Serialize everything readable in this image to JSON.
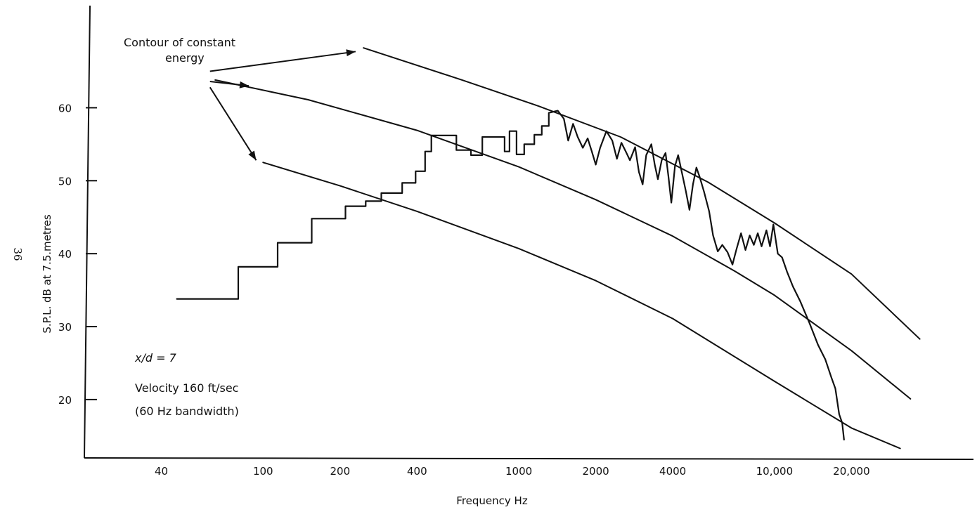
{
  "page_number": "36",
  "chart_data": {
    "type": "line",
    "title": "",
    "xlabel": "Frequency Hz",
    "ylabel": "S.P.L. dB at 7.5.metres",
    "x_scale": "log",
    "xlim": [
      20,
      60000
    ],
    "ylim": [
      12,
      74
    ],
    "grid": false,
    "x_ticks": [
      {
        "value": 40,
        "label": "40"
      },
      {
        "value": 100,
        "label": "100"
      },
      {
        "value": 200,
        "label": "200"
      },
      {
        "value": 400,
        "label": "400"
      },
      {
        "value": 1000,
        "label": "1000"
      },
      {
        "value": 2000,
        "label": "2000"
      },
      {
        "value": 4000,
        "label": "4000"
      },
      {
        "value": 10000,
        "label": "10,000"
      },
      {
        "value": 20000,
        "label": "20,000"
      }
    ],
    "y_ticks": [
      {
        "value": 20,
        "label": "20"
      },
      {
        "value": 30,
        "label": "30"
      },
      {
        "value": 40,
        "label": "40"
      },
      {
        "value": 50,
        "label": "50"
      },
      {
        "value": 60,
        "label": "60"
      }
    ],
    "annotations": [
      {
        "text": "Contour of constant",
        "role": "callout-line-1"
      },
      {
        "text": "energy",
        "role": "callout-line-2"
      },
      {
        "text": "x/d = 7",
        "role": "condition"
      },
      {
        "text": "Velocity 160 ft/sec",
        "role": "condition"
      },
      {
        "text": "(60 Hz bandwidth)",
        "role": "condition"
      }
    ],
    "series": [
      {
        "role": "measured-spectrum",
        "style": "step",
        "points": [
          [
            46,
            33.8
          ],
          [
            80,
            33.8
          ],
          [
            80,
            38.2
          ],
          [
            114,
            38.2
          ],
          [
            114,
            41.5
          ],
          [
            155,
            41.5
          ],
          [
            155,
            44.8
          ],
          [
            210,
            44.8
          ],
          [
            210,
            46.5
          ],
          [
            252,
            46.5
          ],
          [
            252,
            47.2
          ],
          [
            290,
            47.2
          ],
          [
            290,
            48.3
          ],
          [
            350,
            48.3
          ],
          [
            350,
            49.7
          ],
          [
            395,
            49.7
          ],
          [
            395,
            51.3
          ],
          [
            430,
            51.3
          ],
          [
            430,
            54.0
          ],
          [
            455,
            54.0
          ],
          [
            455,
            56.2
          ],
          [
            570,
            56.2
          ],
          [
            570,
            54.2
          ],
          [
            650,
            54.2
          ],
          [
            650,
            53.5
          ],
          [
            720,
            53.5
          ],
          [
            720,
            56.0
          ],
          [
            880,
            56.0
          ],
          [
            880,
            54.0
          ],
          [
            920,
            54.0
          ],
          [
            920,
            56.8
          ],
          [
            980,
            56.8
          ],
          [
            980,
            53.6
          ],
          [
            1050,
            53.6
          ],
          [
            1050,
            55.0
          ],
          [
            1150,
            55.0
          ],
          [
            1150,
            56.3
          ],
          [
            1230,
            56.3
          ],
          [
            1230,
            57.5
          ],
          [
            1310,
            57.5
          ],
          [
            1310,
            59.3
          ],
          [
            1420,
            59.6
          ],
          [
            1500,
            58.5
          ],
          [
            1560,
            55.5
          ],
          [
            1630,
            57.8
          ],
          [
            1700,
            56.0
          ],
          [
            1780,
            54.5
          ],
          [
            1860,
            55.8
          ],
          [
            1930,
            54.0
          ],
          [
            2000,
            52.2
          ],
          [
            2080,
            54.5
          ],
          [
            2200,
            56.8
          ],
          [
            2320,
            55.5
          ],
          [
            2420,
            53.0
          ],
          [
            2520,
            55.2
          ],
          [
            2620,
            54.0
          ],
          [
            2720,
            52.8
          ],
          [
            2850,
            54.6
          ],
          [
            2950,
            51.2
          ],
          [
            3050,
            49.5
          ],
          [
            3150,
            53.5
          ],
          [
            3300,
            55.0
          ],
          [
            3400,
            52.2
          ],
          [
            3500,
            50.2
          ],
          [
            3620,
            52.8
          ],
          [
            3750,
            53.8
          ],
          [
            3850,
            50.5
          ],
          [
            3950,
            47.0
          ],
          [
            4080,
            52.0
          ],
          [
            4200,
            53.5
          ],
          [
            4350,
            51.0
          ],
          [
            4500,
            48.6
          ],
          [
            4650,
            46.0
          ],
          [
            4800,
            49.5
          ],
          [
            4950,
            51.8
          ],
          [
            5100,
            50.5
          ],
          [
            5300,
            48.5
          ],
          [
            5550,
            45.8
          ],
          [
            5750,
            42.5
          ],
          [
            6000,
            40.3
          ],
          [
            6250,
            41.2
          ],
          [
            6550,
            40.2
          ],
          [
            6850,
            38.5
          ],
          [
            7100,
            40.6
          ],
          [
            7400,
            42.8
          ],
          [
            7700,
            40.5
          ],
          [
            8000,
            42.5
          ],
          [
            8300,
            41.2
          ],
          [
            8600,
            42.8
          ],
          [
            8900,
            41.0
          ],
          [
            9300,
            43.2
          ],
          [
            9600,
            41.0
          ],
          [
            9900,
            44.0
          ],
          [
            10300,
            40.0
          ],
          [
            10700,
            39.5
          ],
          [
            11200,
            37.5
          ],
          [
            11800,
            35.5
          ],
          [
            12600,
            33.5
          ],
          [
            13700,
            30.5
          ],
          [
            14800,
            27.5
          ],
          [
            15800,
            25.5
          ],
          [
            16700,
            23.0
          ],
          [
            17300,
            21.5
          ],
          [
            17900,
            18.0
          ],
          [
            18400,
            16.8
          ],
          [
            18700,
            14.5
          ]
        ]
      },
      {
        "role": "constant-energy-contour-upper",
        "style": "line",
        "points": [
          [
            247,
            68.2
          ],
          [
            600,
            63.8
          ],
          [
            1200,
            60.2
          ],
          [
            2500,
            56.0
          ],
          [
            5500,
            49.8
          ],
          [
            10000,
            44.2
          ],
          [
            20000,
            37.2
          ],
          [
            37000,
            28.3
          ]
        ]
      },
      {
        "role": "constant-energy-contour-middle",
        "style": "line",
        "points": [
          [
            65,
            63.8
          ],
          [
            150,
            61.1
          ],
          [
            400,
            56.9
          ],
          [
            1000,
            51.9
          ],
          [
            2000,
            47.4
          ],
          [
            4000,
            42.4
          ],
          [
            7000,
            37.6
          ],
          [
            10000,
            34.3
          ],
          [
            20000,
            26.7
          ],
          [
            34000,
            20.1
          ]
        ]
      },
      {
        "role": "constant-energy-contour-lower",
        "style": "line",
        "points": [
          [
            100,
            52.5
          ],
          [
            200,
            49.3
          ],
          [
            400,
            45.8
          ],
          [
            1000,
            40.7
          ],
          [
            2000,
            36.3
          ],
          [
            4000,
            31.1
          ],
          [
            10000,
            22.5
          ],
          [
            20000,
            16.1
          ],
          [
            31000,
            13.3
          ]
        ]
      }
    ],
    "arrows": [
      {
        "from": [
          62,
          65.0
        ],
        "to": [
          230,
          67.7
        ],
        "dash_until": 185
      },
      {
        "from": [
          62,
          63.6
        ],
        "to": [
          88,
          63.0
        ]
      },
      {
        "from": [
          62,
          62.8
        ],
        "to": [
          94,
          52.8
        ]
      }
    ]
  }
}
